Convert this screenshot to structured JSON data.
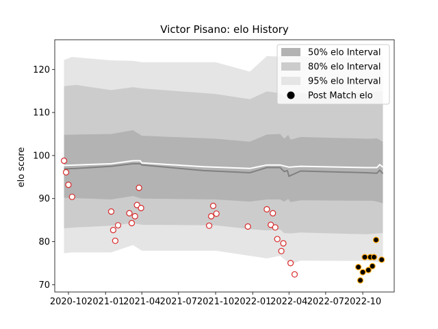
{
  "chart_data": {
    "type": "line",
    "title": "Victor Pisano: elo History",
    "xlabel": "",
    "ylabel": "elo score",
    "x_ticks": [
      "2020-10",
      "2021-01",
      "2021-04",
      "2021-07",
      "2021-10",
      "2022-01",
      "2022-04",
      "2022-07",
      "2022-10"
    ],
    "y_ticks": [
      "70",
      "80",
      "90",
      "100",
      "110",
      "120"
    ],
    "ylim": [
      68.3,
      126.9
    ],
    "xlim": [
      "2020-08-28",
      "2022-12-18"
    ],
    "legend_position": "upper right",
    "legend": [
      {
        "label": "50% elo Interval",
        "kind": "band",
        "color": "#b3b3b3"
      },
      {
        "label": "80% elo Interval",
        "kind": "band",
        "color": "#cccccc"
      },
      {
        "label": "95% elo Interval",
        "kind": "band",
        "color": "#e5e5e5"
      },
      {
        "label": "Post Match elo",
        "kind": "marker",
        "color": "#000000"
      }
    ],
    "series": [
      {
        "name": "50% elo Interval",
        "x": [
          "2020-09-20",
          "2020-10-20",
          "2021-01-15",
          "2021-03-10",
          "2021-04-01",
          "2021-10-01",
          "2021-12-25",
          "2022-02-05",
          "2022-03-10",
          "2022-03-20",
          "2022-03-30",
          "2022-04-05",
          "2022-04-30",
          "2022-10-10",
          "2022-10-25",
          "2022-11-05",
          "2022-11-20"
        ],
        "upper": [
          104.8,
          104.9,
          105.0,
          105.9,
          104.6,
          103.9,
          103.2,
          104.9,
          105.0,
          103.9,
          104.8,
          103.7,
          104.3,
          103.9,
          103.9,
          104.0,
          103.2
        ],
        "lower": [
          90.2,
          90.1,
          89.8,
          90.6,
          90.0,
          89.8,
          89.3,
          89.8,
          89.8,
          89.3,
          89.9,
          89.2,
          89.6,
          89.5,
          89.5,
          89.3,
          88.9
        ]
      },
      {
        "name": "80% elo Interval",
        "x": [
          "2020-09-20",
          "2020-10-20",
          "2021-01-15",
          "2021-03-10",
          "2021-04-01",
          "2021-10-01",
          "2021-12-25",
          "2022-02-05",
          "2022-03-10",
          "2022-03-20",
          "2022-04-05",
          "2022-04-30",
          "2022-10-10",
          "2022-11-05",
          "2022-11-20"
        ],
        "upper": [
          116.1,
          116.4,
          115.2,
          115.9,
          115.6,
          114.3,
          113.1,
          114.9,
          114.5,
          113.8,
          114.7,
          114.5,
          114.7,
          114.9,
          114.9
        ],
        "lower": [
          83.1,
          83.3,
          83.7,
          84.3,
          83.9,
          83.8,
          82.9,
          82.6,
          82.8,
          82.0,
          81.9,
          82.1,
          81.7,
          81.9,
          82.0
        ]
      },
      {
        "name": "95% elo Interval",
        "x": [
          "2020-09-20",
          "2020-10-10",
          "2021-01-15",
          "2021-03-10",
          "2021-04-01",
          "2021-10-01",
          "2021-12-25",
          "2022-02-05",
          "2022-03-10",
          "2022-04-05",
          "2022-04-30",
          "2022-10-10",
          "2022-11-05",
          "2022-11-20"
        ],
        "upper": [
          122.2,
          122.9,
          122.1,
          122.0,
          121.7,
          121.7,
          119.5,
          123.1,
          123.0,
          123.0,
          123.1,
          122.6,
          123.0,
          123.0
        ],
        "lower": [
          77.3,
          77.5,
          77.5,
          79.2,
          77.9,
          77.9,
          76.7,
          76.1,
          76.7,
          74.7,
          75.6,
          75.5,
          75.3,
          75.2
        ]
      },
      {
        "name": "Expected elo",
        "x": [
          "2020-09-20",
          "2020-10-20",
          "2021-01-15",
          "2021-03-10",
          "2021-03-28",
          "2021-04-01",
          "2021-09-01",
          "2021-12-25",
          "2022-02-05",
          "2022-03-10",
          "2022-03-20",
          "2022-03-28",
          "2022-04-01",
          "2022-04-30",
          "2022-10-10",
          "2022-11-05",
          "2022-11-12",
          "2022-11-20"
        ],
        "values": [
          96.9,
          97.0,
          97.5,
          98.1,
          98.1,
          97.8,
          96.5,
          96.0,
          97.2,
          97.2,
          96.3,
          96.5,
          95.2,
          96.4,
          96.0,
          95.9,
          96.6,
          95.8
        ]
      },
      {
        "name": "Upper elo",
        "x": [
          "2020-09-20",
          "2020-10-20",
          "2021-01-15",
          "2021-03-10",
          "2021-03-28",
          "2021-04-01",
          "2021-09-01",
          "2021-12-25",
          "2022-02-05",
          "2022-03-10",
          "2022-03-28",
          "2022-04-01",
          "2022-04-30",
          "2022-10-10",
          "2022-11-05",
          "2022-11-12",
          "2022-11-20"
        ],
        "values": [
          97.7,
          97.8,
          98.1,
          98.8,
          98.8,
          98.3,
          97.4,
          97.0,
          97.8,
          97.8,
          97.4,
          97.3,
          97.5,
          97.2,
          97.2,
          97.9,
          97.3
        ]
      },
      {
        "name": "Post Match elo",
        "points": [
          {
            "x": "2020-09-20",
            "y": 98.8,
            "fill": "#ffffff",
            "edge": "#d62728"
          },
          {
            "x": "2020-09-25",
            "y": 96.1,
            "fill": "#ffffff",
            "edge": "#d62728"
          },
          {
            "x": "2020-10-01",
            "y": 93.2,
            "fill": "#ffffff",
            "edge": "#d62728"
          },
          {
            "x": "2020-10-10",
            "y": 90.4,
            "fill": "#ffffff",
            "edge": "#d62728"
          },
          {
            "x": "2021-01-15",
            "y": 87.0,
            "fill": "#ffffff",
            "edge": "#d62728"
          },
          {
            "x": "2021-01-20",
            "y": 82.7,
            "fill": "#ffffff",
            "edge": "#d62728"
          },
          {
            "x": "2021-01-25",
            "y": 80.2,
            "fill": "#ffffff",
            "edge": "#d62728"
          },
          {
            "x": "2021-02-01",
            "y": 83.8,
            "fill": "#ffffff",
            "edge": "#d62728"
          },
          {
            "x": "2021-03-01",
            "y": 86.6,
            "fill": "#ffffff",
            "edge": "#d62728"
          },
          {
            "x": "2021-03-07",
            "y": 84.3,
            "fill": "#ffffff",
            "edge": "#d62728"
          },
          {
            "x": "2021-03-15",
            "y": 85.9,
            "fill": "#ffffff",
            "edge": "#d62728"
          },
          {
            "x": "2021-03-20",
            "y": 88.5,
            "fill": "#ffffff",
            "edge": "#d62728"
          },
          {
            "x": "2021-03-25",
            "y": 92.5,
            "fill": "#ffffff",
            "edge": "#d62728"
          },
          {
            "x": "2021-03-30",
            "y": 87.8,
            "fill": "#ffffff",
            "edge": "#d62728"
          },
          {
            "x": "2021-09-15",
            "y": 83.7,
            "fill": "#ffffff",
            "edge": "#d62728"
          },
          {
            "x": "2021-09-20",
            "y": 85.9,
            "fill": "#ffffff",
            "edge": "#d62728"
          },
          {
            "x": "2021-09-25",
            "y": 88.3,
            "fill": "#ffffff",
            "edge": "#d62728"
          },
          {
            "x": "2021-10-03",
            "y": 86.5,
            "fill": "#ffffff",
            "edge": "#d62728"
          },
          {
            "x": "2021-12-20",
            "y": 83.5,
            "fill": "#ffffff",
            "edge": "#d62728"
          },
          {
            "x": "2022-02-05",
            "y": 87.5,
            "fill": "#ffffff",
            "edge": "#d62728"
          },
          {
            "x": "2022-02-15",
            "y": 83.9,
            "fill": "#ffffff",
            "edge": "#d62728"
          },
          {
            "x": "2022-02-20",
            "y": 86.6,
            "fill": "#ffffff",
            "edge": "#d62728"
          },
          {
            "x": "2022-02-26",
            "y": 83.3,
            "fill": "#ffffff",
            "edge": "#d62728"
          },
          {
            "x": "2022-03-03",
            "y": 80.6,
            "fill": "#ffffff",
            "edge": "#d62728"
          },
          {
            "x": "2022-03-13",
            "y": 77.8,
            "fill": "#ffffff",
            "edge": "#d62728"
          },
          {
            "x": "2022-03-18",
            "y": 79.6,
            "fill": "#ffffff",
            "edge": "#d62728"
          },
          {
            "x": "2022-04-05",
            "y": 75.0,
            "fill": "#ffffff",
            "edge": "#d62728"
          },
          {
            "x": "2022-04-15",
            "y": 72.4,
            "fill": "#ffffff",
            "edge": "#d62728"
          },
          {
            "x": "2022-09-20",
            "y": 74.1,
            "fill": "#000000",
            "edge": "#ffa500"
          },
          {
            "x": "2022-09-25",
            "y": 71.0,
            "fill": "#000000",
            "edge": "#ffa500"
          },
          {
            "x": "2022-10-01",
            "y": 72.9,
            "fill": "#000000",
            "edge": "#ffa500"
          },
          {
            "x": "2022-10-06",
            "y": 76.4,
            "fill": "#000000",
            "edge": "#ffa500"
          },
          {
            "x": "2022-10-15",
            "y": 73.4,
            "fill": "#000000",
            "edge": "#ffa500"
          },
          {
            "x": "2022-10-20",
            "y": 76.4,
            "fill": "#000000",
            "edge": "#ffa500"
          },
          {
            "x": "2022-10-25",
            "y": 74.3,
            "fill": "#000000",
            "edge": "#ffa500"
          },
          {
            "x": "2022-10-29",
            "y": 76.4,
            "fill": "#000000",
            "edge": "#ffa500"
          },
          {
            "x": "2022-11-03",
            "y": 80.4,
            "fill": "#000000",
            "edge": "#ffa500"
          },
          {
            "x": "2022-11-17",
            "y": 75.8,
            "fill": "#000000",
            "edge": "#ffa500"
          }
        ]
      }
    ],
    "colors": {
      "expected_line": "#808080",
      "upper_line": "#ffffff",
      "band_50": "#b3b3b3",
      "band_80": "#cccccc",
      "band_95": "#e5e5e5"
    }
  }
}
